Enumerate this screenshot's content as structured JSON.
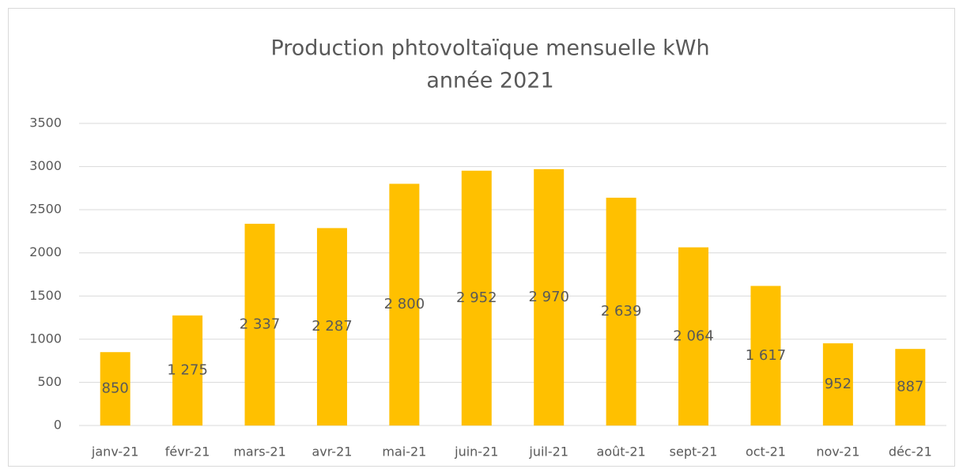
{
  "chart_data": {
    "type": "bar",
    "title": [
      "Production phtovoltaïque mensuelle kWh",
      "année 2021"
    ],
    "categories": [
      "janv-21",
      "févr-21",
      "mars-21",
      "avr-21",
      "mai-21",
      "juin-21",
      "juil-21",
      "août-21",
      "sept-21",
      "oct-21",
      "nov-21",
      "déc-21"
    ],
    "values": [
      850,
      1275,
      2337,
      2287,
      2800,
      2952,
      2970,
      2639,
      2064,
      1617,
      952,
      887
    ],
    "value_labels": [
      "850",
      "1 275",
      "2 337",
      "2 287",
      "2 800",
      "2 952",
      "2 970",
      "2 639",
      "2 064",
      "1 617",
      "952",
      "887"
    ],
    "color": "#ffc000",
    "ylim": [
      0,
      3500
    ],
    "yticks": [
      0,
      500,
      1000,
      1500,
      2000,
      2500,
      3000,
      3500
    ],
    "grid": true
  }
}
